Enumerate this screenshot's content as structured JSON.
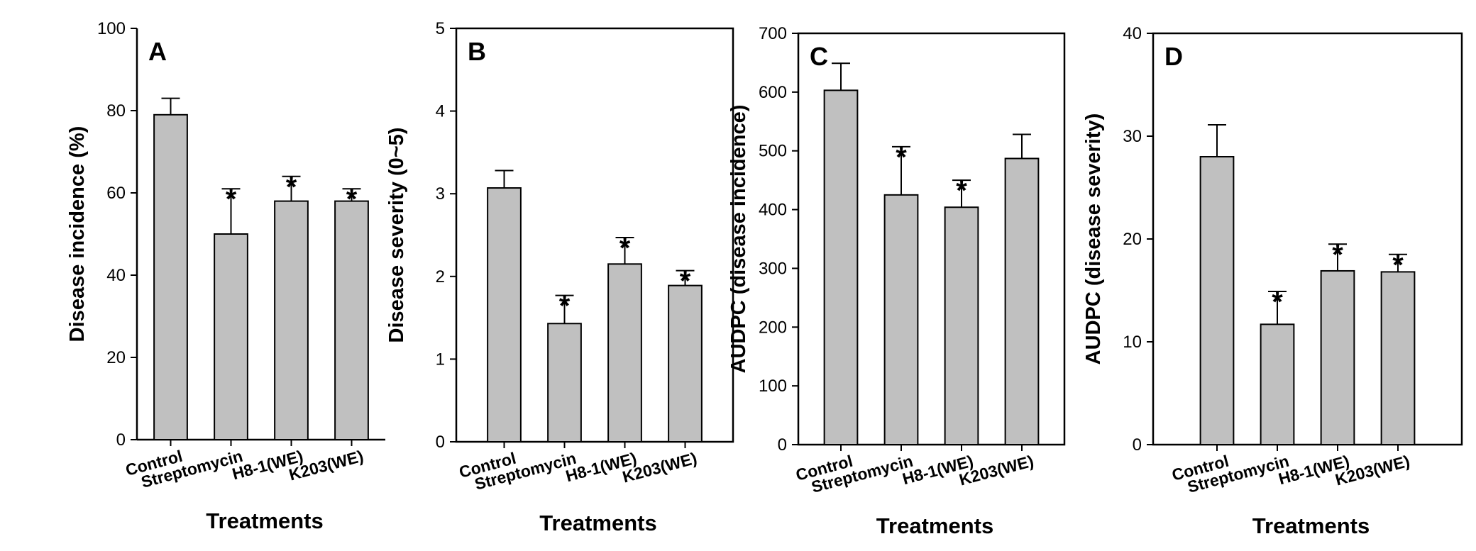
{
  "colors": {
    "bar_fill": "#c0c0c0",
    "stroke": "#000000",
    "background": "#ffffff"
  },
  "chart_data": [
    {
      "type": "bar",
      "panel_label": "A",
      "categories": [
        "Control",
        "Streptomycin",
        "H8-1(WE)",
        "K203(WE)"
      ],
      "values": [
        79,
        50,
        58,
        58
      ],
      "errors": [
        4,
        11,
        6,
        3
      ],
      "significance": [
        "",
        "*",
        "*",
        "*"
      ],
      "ylabel": "Disease incidence (%)",
      "xlabel": "Treatments",
      "ylim": [
        0,
        100
      ],
      "yticks": [
        0,
        20,
        40,
        60,
        80,
        100
      ],
      "ytick_labels": [
        "0",
        "20",
        "40",
        "60",
        "80",
        "100"
      ]
    },
    {
      "type": "bar",
      "panel_label": "B",
      "categories": [
        "Control",
        "Streptomycin",
        "H8-1(WE)",
        "K203(WE)"
      ],
      "values": [
        3.07,
        1.43,
        2.15,
        1.89
      ],
      "errors": [
        0.21,
        0.34,
        0.32,
        0.18
      ],
      "significance": [
        "",
        "*",
        "*",
        "*"
      ],
      "ylabel": "Disease severity (0~5)",
      "xlabel": "Treatments",
      "ylim": [
        0,
        5
      ],
      "yticks": [
        0,
        1,
        2,
        3,
        4,
        5
      ],
      "ytick_labels": [
        "0",
        "1",
        "2",
        "3",
        "4",
        "5"
      ]
    },
    {
      "type": "bar",
      "panel_label": "C",
      "categories": [
        "Control",
        "Streptomycin",
        "H8-1(WE)",
        "K203(WE)"
      ],
      "values": [
        603,
        425,
        404,
        487
      ],
      "errors": [
        46,
        82,
        46,
        41
      ],
      "significance": [
        "",
        "*",
        "*",
        ""
      ],
      "ylabel": "AUDPC (disease incidence)",
      "xlabel": "Treatments",
      "ylim": [
        0,
        700
      ],
      "yticks": [
        0,
        100,
        200,
        300,
        400,
        500,
        600,
        700
      ],
      "ytick_labels": [
        "0",
        "100",
        "200",
        "300",
        "400",
        "500",
        "600",
        "700"
      ]
    },
    {
      "type": "bar",
      "panel_label": "D",
      "categories": [
        "Control",
        "Streptomycin",
        "H8-1(WE)",
        "K203(WE)"
      ],
      "values": [
        28,
        11.7,
        16.9,
        16.8
      ],
      "errors": [
        3.1,
        3.2,
        2.6,
        1.7
      ],
      "significance": [
        "",
        "*",
        "*",
        "*"
      ],
      "ylabel": "AUDPC (disease severity)",
      "xlabel": "Treatments",
      "ylim": [
        0,
        40
      ],
      "yticks": [
        0,
        10,
        20,
        30,
        40
      ],
      "ytick_labels": [
        "0",
        "10",
        "20",
        "30",
        "40"
      ]
    }
  ]
}
